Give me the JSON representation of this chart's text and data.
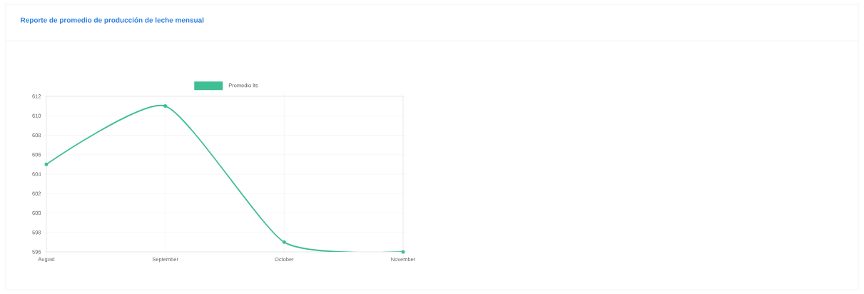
{
  "chart_data": {
    "type": "line",
    "title": "Reporte de promedio de producción de leche mensual",
    "categories": [
      "August",
      "September",
      "October",
      "November"
    ],
    "series": [
      {
        "name": "Promedio lts",
        "color": "#3fbf94",
        "values": [
          605,
          611,
          597,
          596
        ]
      }
    ],
    "ylim": [
      596,
      612
    ],
    "yticks": [
      596,
      598,
      600,
      602,
      604,
      606,
      608,
      610,
      612
    ],
    "grid": true,
    "legend": "top",
    "marker": "circle",
    "line_style": "solid"
  }
}
